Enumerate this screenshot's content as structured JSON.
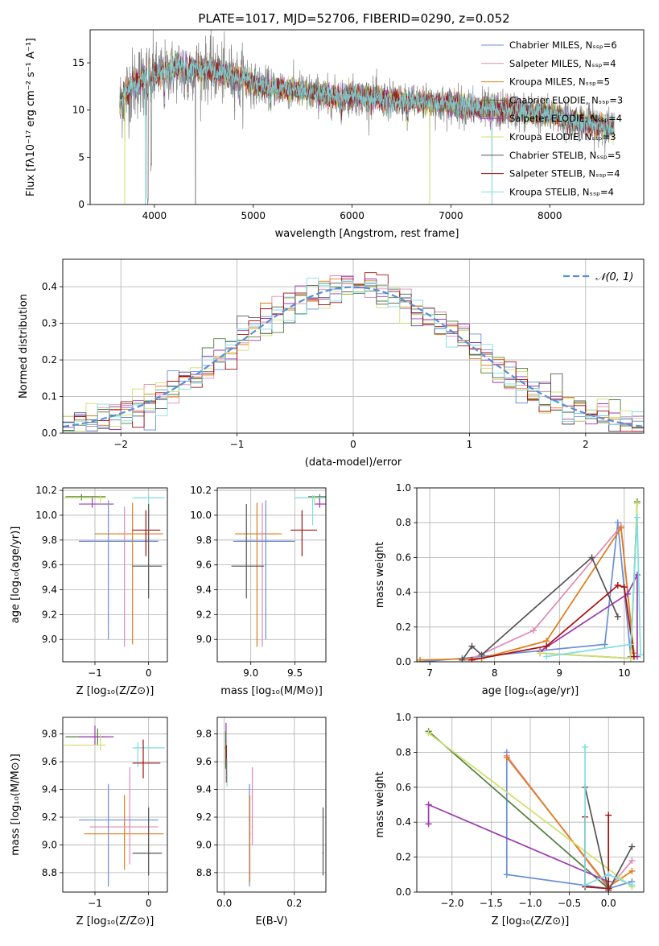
{
  "figure_title": "PLATE=1017, MJD=52706, FIBERID=0290, z=0.052",
  "chart_data": [
    {
      "id": "spectrum",
      "type": "line",
      "xlabel": "wavelength [Angstrom, rest frame]",
      "ylabel": "Flux [fλ10⁻¹⁷ erg cm⁻² s⁻¹ A⁻¹]",
      "xlim": [
        3350,
        8950
      ],
      "ylim": [
        0,
        18.5
      ],
      "xticks": [
        4000,
        5000,
        6000,
        7000,
        8000
      ],
      "yticks": [
        0,
        5,
        10,
        15
      ],
      "grid": false,
      "legend": "upper-right",
      "data_range": [
        3650,
        8650
      ],
      "continuum": {
        "x": [
          3650,
          3700,
          3800,
          3900,
          4000,
          4100,
          4200,
          4300,
          4400,
          4500,
          4600,
          4700,
          4800,
          4900,
          5000,
          5100,
          5200,
          5300,
          5400,
          5500,
          5600,
          5700,
          5800,
          5900,
          6000,
          6200,
          6400,
          6600,
          6800,
          7000,
          7200,
          7400,
          7600,
          7800,
          8000,
          8200,
          8400,
          8650
        ],
        "y": [
          10.5,
          11.8,
          12.8,
          13.5,
          13.8,
          14.0,
          14.3,
          14.5,
          14.5,
          14.3,
          14.2,
          13.9,
          13.6,
          13.4,
          12.8,
          12.5,
          12.4,
          12.3,
          12.1,
          12.1,
          11.8,
          11.6,
          11.4,
          11.3,
          11.5,
          11.3,
          11.0,
          10.9,
          10.7,
          10.6,
          10.3,
          10.1,
          10.0,
          9.7,
          9.5,
          9.0,
          8.6,
          8.0
        ]
      },
      "absorption_dips": [
        {
          "x": 3933,
          "y": 0.3
        },
        {
          "x": 3968,
          "y": 4.0
        },
        {
          "x": 4101,
          "y": 10.8
        },
        {
          "x": 4304,
          "y": 11.2
        },
        {
          "x": 4340,
          "y": 11.5
        },
        {
          "x": 4861,
          "y": 11.8
        },
        {
          "x": 5175,
          "y": 11.2
        },
        {
          "x": 5890,
          "y": 10.8
        },
        {
          "x": 6563,
          "y": 10.6
        }
      ],
      "dropouts": [
        {
          "x": 3700,
          "y": 0.0
        },
        {
          "x": 3908,
          "y": 0.0
        },
        {
          "x": 4416,
          "y": 0.0
        },
        {
          "x": 6785,
          "y": 0.0
        },
        {
          "x": 7415,
          "y": 0.0
        }
      ],
      "series": [
        {
          "name": "Chabrier MILES, Nₛₛₚ=6",
          "color": "#6a8fd8"
        },
        {
          "name": "Salpeter MILES, Nₛₛₚ=4",
          "color": "#e08ab4"
        },
        {
          "name": "Kroupa MILES, Nₛₛₚ=5",
          "color": "#e07b1a"
        },
        {
          "name": "Chabrier ELODIE, Nₛₛₚ=3",
          "color": "#4f7f3a"
        },
        {
          "name": "Salpeter ELODIE, Nₛₛₚ=4",
          "color": "#9b3aaf"
        },
        {
          "name": "Kroupa ELODIE, Nₛₛₚ=3",
          "color": "#cfe06a"
        },
        {
          "name": "Chabrier STELIB, Nₛₛₚ=5",
          "color": "#555555"
        },
        {
          "name": "Salpeter STELIB, Nₛₛₚ=4",
          "color": "#a51010"
        },
        {
          "name": "Kroupa STELIB, Nₛₛₚ=4",
          "color": "#7fdde0"
        }
      ]
    },
    {
      "id": "residuals",
      "type": "step",
      "xlabel": "(data-model)/error",
      "ylabel": "Normed distribution",
      "xlim": [
        -2.5,
        2.5
      ],
      "ylim": [
        0,
        0.475
      ],
      "xticks": [
        -2,
        -1,
        0,
        1,
        2
      ],
      "yticks": [
        0.0,
        0.1,
        0.2,
        0.3,
        0.4
      ],
      "grid": true,
      "legend": "upper-right",
      "gaussian": {
        "name": "𝒩(0, 1)",
        "color": "#5b8ed6"
      },
      "bin_width": 0.1,
      "bin_start": -2.5
    },
    {
      "id": "age_vs_Z",
      "type": "errorbar",
      "xlabel": "Z [log₁₀(Z/Z⊙)]",
      "ylabel": "age  [log₁₀(age/yr)]",
      "xlim": [
        -1.6,
        0.35
      ],
      "ylim": [
        8.82,
        10.22
      ],
      "xticks": [
        -1,
        0
      ],
      "yticks": [
        9.0,
        9.2,
        9.4,
        9.6,
        9.8,
        10.0,
        10.2
      ],
      "grid": true,
      "points": [
        {
          "x": -1.25,
          "y": 10.15,
          "xlo": -1.55,
          "xhi": -0.8,
          "ylo": 10.12,
          "yhi": 10.17,
          "color": "#4f7f3a"
        },
        {
          "x": -1.05,
          "y": 10.09,
          "xlo": -1.3,
          "xhi": -0.65,
          "ylo": 10.06,
          "yhi": 10.15,
          "color": "#9b3aaf"
        },
        {
          "x": -0.9,
          "y": 10.14,
          "xlo": -1.58,
          "xhi": -0.8,
          "ylo": 10.1,
          "yhi": 10.16,
          "color": "#cfe06a"
        },
        {
          "x": 0.0,
          "y": 10.14,
          "xlo": -0.3,
          "xhi": 0.3,
          "ylo": 9.92,
          "yhi": 10.16,
          "color": "#7fdde0"
        },
        {
          "x": -0.3,
          "y": 9.85,
          "xlo": -1.0,
          "xhi": 0.27,
          "ylo": 8.96,
          "yhi": 10.1,
          "color": "#e07b1a"
        },
        {
          "x": -0.45,
          "y": 9.79,
          "xlo": -1.3,
          "xhi": 0.18,
          "ylo": 8.94,
          "yhi": 10.07,
          "color": "#e08ab4"
        },
        {
          "x": -0.75,
          "y": 9.79,
          "xlo": -1.3,
          "xhi": 0.18,
          "ylo": 9.0,
          "yhi": 10.12,
          "color": "#6a8fd8"
        },
        {
          "x": -0.05,
          "y": 9.88,
          "xlo": -0.3,
          "xhi": 0.22,
          "ylo": 9.67,
          "yhi": 10.04,
          "color": "#a51010"
        },
        {
          "x": 0.0,
          "y": 9.59,
          "xlo": -0.3,
          "xhi": 0.25,
          "ylo": 9.33,
          "yhi": 10.09,
          "color": "#555555"
        }
      ]
    },
    {
      "id": "age_vs_mass",
      "type": "errorbar",
      "xlabel": "mass [log₁₀(M/M⊙)]",
      "ylabel": "",
      "xlim": [
        8.62,
        9.85
      ],
      "ylim": [
        8.82,
        10.22
      ],
      "xticks": [
        9.0,
        9.5
      ],
      "yticks": [
        9.0,
        9.2,
        9.4,
        9.6,
        9.8,
        10.0,
        10.2
      ],
      "grid": true,
      "points": [
        {
          "x": 9.78,
          "y": 10.15,
          "xlo": 9.65,
          "xhi": 9.85,
          "ylo": 10.12,
          "yhi": 10.17,
          "color": "#4f7f3a"
        },
        {
          "x": 9.78,
          "y": 10.09,
          "xlo": 9.72,
          "xhi": 9.86,
          "ylo": 10.06,
          "yhi": 10.15,
          "color": "#9b3aaf"
        },
        {
          "x": 9.72,
          "y": 10.14,
          "xlo": 9.5,
          "xhi": 9.85,
          "ylo": 10.1,
          "yhi": 10.16,
          "color": "#cfe06a"
        },
        {
          "x": 9.7,
          "y": 10.14,
          "xlo": 9.5,
          "xhi": 9.85,
          "ylo": 9.92,
          "yhi": 10.16,
          "color": "#7fdde0"
        },
        {
          "x": 9.07,
          "y": 9.85,
          "xlo": 8.82,
          "xhi": 9.35,
          "ylo": 8.94,
          "yhi": 10.1,
          "color": "#e07b1a"
        },
        {
          "x": 9.13,
          "y": 9.79,
          "xlo": 8.85,
          "xhi": 9.45,
          "ylo": 8.94,
          "yhi": 10.1,
          "color": "#e08ab4"
        },
        {
          "x": 9.17,
          "y": 9.79,
          "xlo": 8.8,
          "xhi": 9.5,
          "ylo": 9.0,
          "yhi": 10.12,
          "color": "#6a8fd8"
        },
        {
          "x": 9.58,
          "y": 9.88,
          "xlo": 9.45,
          "xhi": 9.75,
          "ylo": 9.67,
          "yhi": 10.04,
          "color": "#a51010"
        },
        {
          "x": 8.95,
          "y": 9.59,
          "xlo": 8.78,
          "xhi": 9.15,
          "ylo": 9.33,
          "yhi": 10.09,
          "color": "#555555"
        }
      ]
    },
    {
      "id": "weight_vs_age",
      "type": "line",
      "xlabel": "age  [log₁₀(age/yr)]",
      "ylabel": "mass weight",
      "xlim": [
        6.8,
        10.3
      ],
      "ylim": [
        0.0,
        1.0
      ],
      "xticks": [
        7,
        8,
        9,
        10
      ],
      "yticks": [
        0.0,
        0.2,
        0.4,
        0.6,
        0.8,
        1.0
      ],
      "grid": true,
      "series": [
        {
          "color": "#6a8fd8",
          "x": [
            6.85,
            7.5,
            9.7,
            9.9,
            10.1
          ],
          "y": [
            0.0,
            0.02,
            0.1,
            0.8,
            0.03
          ]
        },
        {
          "color": "#e08ab4",
          "x": [
            7.6,
            8.6,
            9.95,
            10.15
          ],
          "y": [
            0.01,
            0.18,
            0.78,
            0.03
          ]
        },
        {
          "color": "#e07b1a",
          "x": [
            6.85,
            7.8,
            8.8,
            9.95,
            10.15
          ],
          "y": [
            0.01,
            0.02,
            0.12,
            0.77,
            0.05
          ]
        },
        {
          "color": "#4f7f3a",
          "x": [
            8.7,
            10.1,
            10.2
          ],
          "y": [
            0.05,
            0.02,
            0.92
          ]
        },
        {
          "color": "#9b3aaf",
          "x": [
            8.7,
            10.05,
            10.2,
            10.2
          ],
          "y": [
            0.06,
            0.39,
            0.5,
            0.03
          ]
        },
        {
          "color": "#cfe06a",
          "x": [
            8.7,
            10.1,
            10.2
          ],
          "y": [
            0.05,
            0.02,
            0.91
          ]
        },
        {
          "color": "#555555",
          "x": [
            7.5,
            7.65,
            7.8,
            9.5,
            9.9
          ],
          "y": [
            0.01,
            0.09,
            0.04,
            0.6,
            0.26
          ]
        },
        {
          "color": "#a51010",
          "x": [
            7.65,
            8.8,
            9.9,
            10.0,
            10.15
          ],
          "y": [
            0.01,
            0.09,
            0.44,
            0.43,
            0.03
          ]
        },
        {
          "color": "#7fdde0",
          "x": [
            8.8,
            10.1,
            10.2,
            10.25
          ],
          "y": [
            0.03,
            0.1,
            0.83,
            0.04
          ]
        }
      ]
    },
    {
      "id": "mass_vs_Z",
      "type": "errorbar",
      "xlabel": "Z [log₁₀(Z/Z⊙)]",
      "ylabel": "mass [log₁₀(M/M⊙)]",
      "xlim": [
        -1.6,
        0.35
      ],
      "ylim": [
        8.66,
        9.92
      ],
      "xticks": [
        -1,
        0
      ],
      "yticks": [
        8.8,
        9.0,
        9.2,
        9.4,
        9.6,
        9.8
      ],
      "grid": true,
      "points": [
        {
          "x": -0.95,
          "y": 9.78,
          "xlo": -1.55,
          "xhi": -0.8,
          "ylo": 9.72,
          "yhi": 9.84,
          "color": "#4f7f3a"
        },
        {
          "x": -1.0,
          "y": 9.78,
          "xlo": -1.3,
          "xhi": -0.65,
          "ylo": 9.72,
          "yhi": 9.86,
          "color": "#9b3aaf"
        },
        {
          "x": -0.9,
          "y": 9.72,
          "xlo": -1.58,
          "xhi": -0.8,
          "ylo": 9.68,
          "yhi": 9.8,
          "color": "#cfe06a"
        },
        {
          "x": -0.2,
          "y": 9.7,
          "xlo": -0.3,
          "xhi": 0.3,
          "ylo": 9.56,
          "yhi": 9.74,
          "color": "#7fdde0"
        },
        {
          "x": -0.45,
          "y": 9.08,
          "xlo": -1.2,
          "xhi": 0.28,
          "ylo": 8.82,
          "yhi": 9.36,
          "color": "#e07b1a"
        },
        {
          "x": -0.35,
          "y": 9.13,
          "xlo": -1.1,
          "xhi": 0.18,
          "ylo": 8.86,
          "yhi": 9.56,
          "color": "#e08ab4"
        },
        {
          "x": -0.75,
          "y": 9.18,
          "xlo": -1.3,
          "xhi": 0.18,
          "ylo": 8.7,
          "yhi": 9.44,
          "color": "#6a8fd8"
        },
        {
          "x": -0.1,
          "y": 9.59,
          "xlo": -0.3,
          "xhi": 0.22,
          "ylo": 9.48,
          "yhi": 9.76,
          "color": "#a51010"
        },
        {
          "x": 0.0,
          "y": 8.94,
          "xlo": -0.3,
          "xhi": 0.25,
          "ylo": 8.78,
          "yhi": 9.27,
          "color": "#555555"
        }
      ]
    },
    {
      "id": "mass_vs_ebv",
      "type": "errorbar",
      "xlabel": "E(B-V)",
      "ylabel": "",
      "xlim": [
        -0.02,
        0.29
      ],
      "ylim": [
        8.66,
        9.92
      ],
      "xticks": [
        0.0,
        0.2
      ],
      "yticks": [
        8.8,
        9.0,
        9.2,
        9.4,
        9.6,
        9.8
      ],
      "grid": true,
      "points": [
        {
          "x": 0.005,
          "y": 9.75,
          "xlo": 0.003,
          "xhi": 0.007,
          "ylo": 9.6,
          "yhi": 9.88,
          "color": "#9b3aaf"
        },
        {
          "x": 0.004,
          "y": 9.7,
          "xlo": 0.002,
          "xhi": 0.006,
          "ylo": 9.55,
          "yhi": 9.82,
          "color": "#4f7f3a"
        },
        {
          "x": 0.006,
          "y": 9.6,
          "xlo": 0.004,
          "xhi": 0.008,
          "ylo": 9.45,
          "yhi": 9.72,
          "color": "#a51010"
        },
        {
          "x": 0.008,
          "y": 9.5,
          "xlo": 0.006,
          "xhi": 0.01,
          "ylo": 9.42,
          "yhi": 9.62,
          "color": "#7fdde0"
        },
        {
          "x": 0.072,
          "y": 9.18,
          "xlo": 0.07,
          "xhi": 0.074,
          "ylo": 8.7,
          "yhi": 9.44,
          "color": "#6a8fd8"
        },
        {
          "x": 0.073,
          "y": 9.08,
          "xlo": 0.071,
          "xhi": 0.075,
          "ylo": 8.73,
          "yhi": 9.36,
          "color": "#e07b1a"
        },
        {
          "x": 0.08,
          "y": 9.13,
          "xlo": 0.078,
          "xhi": 0.082,
          "ylo": 9.0,
          "yhi": 9.56,
          "color": "#e08ab4"
        },
        {
          "x": 0.282,
          "y": 8.94,
          "xlo": 0.28,
          "xhi": 0.284,
          "ylo": 8.78,
          "yhi": 9.27,
          "color": "#555555"
        }
      ]
    },
    {
      "id": "weight_vs_Z",
      "type": "line",
      "xlabel": "Z [log₁₀(Z/Z⊙)]",
      "ylabel": "mass weight",
      "xlim": [
        -2.45,
        0.45
      ],
      "ylim": [
        0.0,
        1.0
      ],
      "xticks": [
        -2.0,
        -1.5,
        -1.0,
        -0.5,
        0.0
      ],
      "yticks": [
        0.0,
        0.2,
        0.4,
        0.6,
        0.8,
        1.0
      ],
      "grid": true,
      "series": [
        {
          "color": "#6a8fd8",
          "x": [
            -1.3,
            -1.3,
            0.0,
            0.3
          ],
          "y": [
            0.8,
            0.1,
            0.02,
            0.06
          ]
        },
        {
          "color": "#e08ab4",
          "x": [
            -1.3,
            0.0,
            0.3
          ],
          "y": [
            0.78,
            0.02,
            0.18
          ]
        },
        {
          "color": "#e07b1a",
          "x": [
            -1.3,
            0.0,
            0.3
          ],
          "y": [
            0.77,
            0.03,
            0.12
          ]
        },
        {
          "color": "#4f7f3a",
          "x": [
            -2.3,
            0.0
          ],
          "y": [
            0.92,
            0.02
          ]
        },
        {
          "color": "#9b3aaf",
          "x": [
            -2.3,
            -2.3,
            0.0
          ],
          "y": [
            0.39,
            0.5,
            0.06
          ]
        },
        {
          "color": "#cfe06a",
          "x": [
            -2.3,
            0.3
          ],
          "y": [
            0.91,
            0.03
          ]
        },
        {
          "color": "#555555",
          "x": [
            -0.3,
            0.0,
            0.3
          ],
          "y": [
            0.6,
            0.01,
            0.26
          ]
        },
        {
          "color": "#a51010",
          "x": [
            -0.3,
            -0.3,
            0.0,
            0.0
          ],
          "y": [
            0.43,
            0.03,
            0.02,
            0.44
          ]
        },
        {
          "color": "#7fdde0",
          "x": [
            -0.3,
            -0.3,
            0.0,
            0.3
          ],
          "y": [
            0.83,
            0.04,
            0.1,
            0.04
          ]
        }
      ]
    }
  ]
}
